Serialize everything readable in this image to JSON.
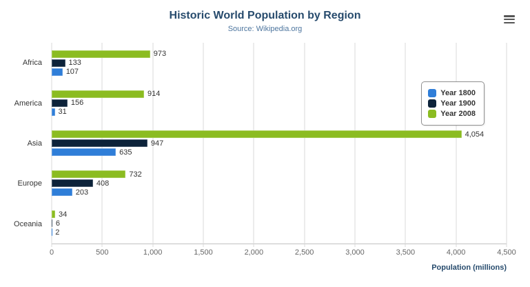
{
  "header": {
    "title": "Historic World Population by Region",
    "subtitle": "Source: Wikipedia.org"
  },
  "export_menu": {
    "icon": "hamburger-menu-icon"
  },
  "chart_data": {
    "type": "bar",
    "orientation": "horizontal",
    "title": "Historic World Population by Region",
    "subtitle": "Source: Wikipedia.org",
    "categories": [
      "Africa",
      "America",
      "Asia",
      "Europe",
      "Oceania"
    ],
    "series": [
      {
        "name": "Year 1800",
        "color": "#2f7ed8",
        "values": [
          107,
          31,
          635,
          203,
          2
        ]
      },
      {
        "name": "Year 1900",
        "color": "#0d233a",
        "values": [
          133,
          156,
          947,
          408,
          6
        ]
      },
      {
        "name": "Year 2008",
        "color": "#8bbc21",
        "values": [
          973,
          914,
          4054,
          732,
          34
        ]
      }
    ],
    "xlabel": "Population (millions)",
    "ylabel": "",
    "xlim": [
      0,
      4500
    ],
    "xticks": [
      0,
      500,
      1000,
      1500,
      2000,
      2500,
      3000,
      3500,
      4000,
      4500
    ],
    "grid": true,
    "legend_position": "right"
  }
}
